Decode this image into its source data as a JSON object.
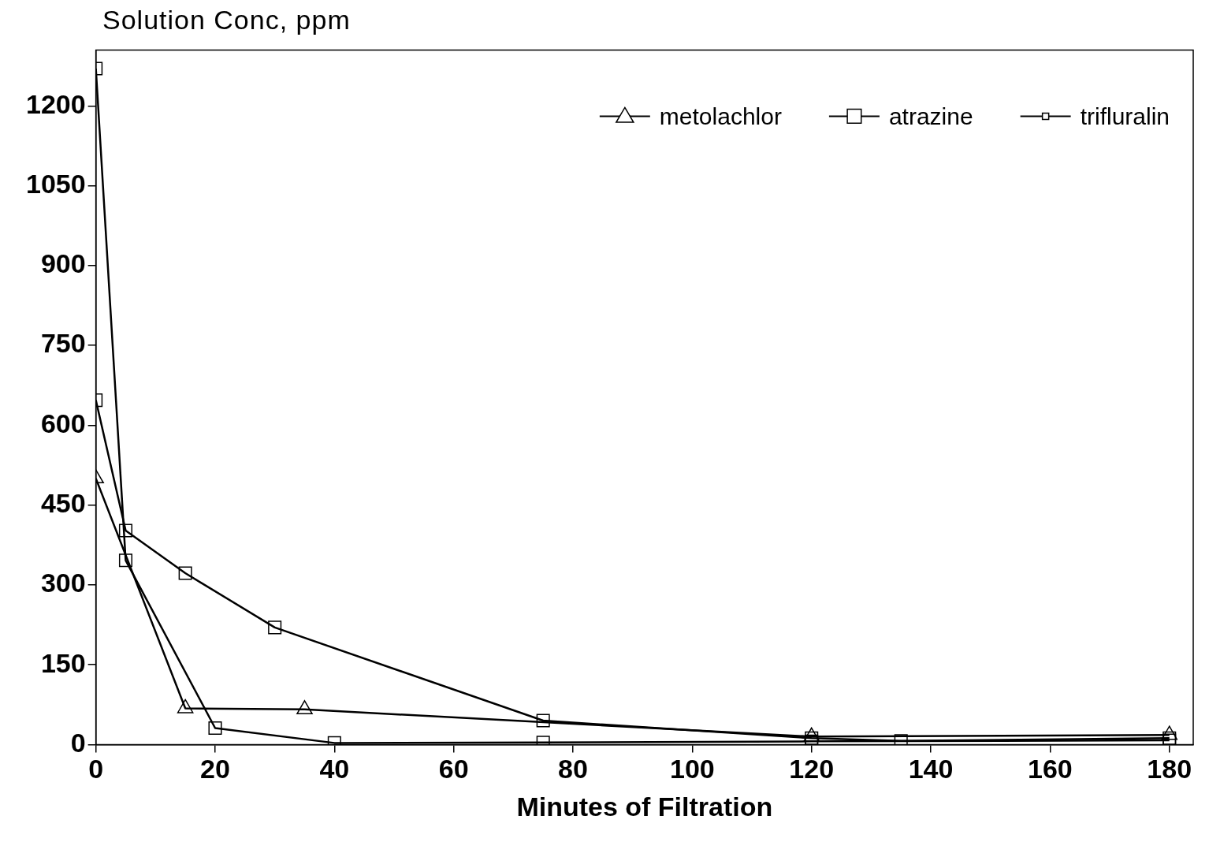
{
  "chart_data": {
    "type": "line",
    "ylabel": "Solution Conc, ppm",
    "xlabel": "Minutes of Filtration",
    "xlim": [
      0,
      184
    ],
    "xticks": [
      0,
      20,
      40,
      60,
      80,
      100,
      120,
      140,
      160,
      180
    ],
    "ylim": [
      0,
      1305
    ],
    "yticks": [
      0,
      150,
      300,
      450,
      600,
      750,
      900,
      1050,
      1200
    ],
    "grid": false,
    "legend": "top right",
    "line_style": "solid",
    "series": [
      {
        "name": "metolachlor",
        "color": "#000000",
        "marker": "triangle",
        "x": [
          0,
          15,
          35,
          120,
          180
        ],
        "values": [
          500,
          68,
          66,
          15,
          18
        ]
      },
      {
        "name": "atrazine",
        "color": "#000000",
        "marker": "square",
        "x": [
          0,
          5,
          20,
          40,
          75,
          120,
          180
        ],
        "values": [
          1270,
          346,
          31,
          3,
          4,
          6,
          8
        ]
      },
      {
        "name": "trifluralin",
        "color": "#000000",
        "marker": "square",
        "x": [
          0,
          5,
          15,
          30,
          75,
          120,
          135,
          180
        ],
        "values": [
          647,
          402,
          322,
          220,
          45,
          12,
          7,
          12
        ]
      }
    ]
  }
}
